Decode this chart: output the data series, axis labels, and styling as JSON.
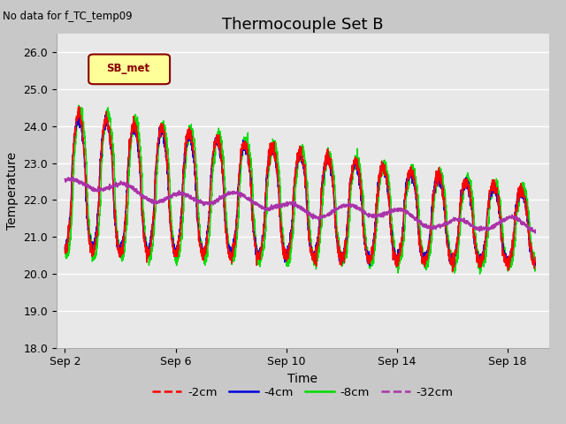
{
  "title": "Thermocouple Set B",
  "subtitle": "No data for f_TC_temp09",
  "xlabel": "Time",
  "ylabel": "Temperature",
  "ylim": [
    18.0,
    26.5
  ],
  "yticks": [
    18.0,
    19.0,
    20.0,
    21.0,
    22.0,
    23.0,
    24.0,
    25.0,
    26.0
  ],
  "xtick_labels": [
    "Sep 2",
    "Sep 6",
    "Sep 10",
    "Sep 14",
    "Sep 18"
  ],
  "xtick_positions": [
    0,
    4,
    8,
    12,
    16
  ],
  "xlim": [
    -0.3,
    17.5
  ],
  "colors": {
    "-2cm": "#ff0000",
    "-4cm": "#0000dd",
    "-8cm": "#00dd00",
    "-32cm": "#aa33aa"
  },
  "legend_colors": [
    "#ff0000",
    "#0000dd",
    "#00dd00",
    "#aa33aa"
  ],
  "legend_entries": [
    "-2cm",
    "-4cm",
    "-8cm",
    "-32cm"
  ],
  "sb_met_box_color": "#ffff99",
  "sb_met_text_color": "#880000",
  "fig_bg_color": "#c8c8c8",
  "plot_bg_color": "#e8e8e8",
  "title_fontsize": 13,
  "axis_fontsize": 10,
  "tick_fontsize": 9
}
